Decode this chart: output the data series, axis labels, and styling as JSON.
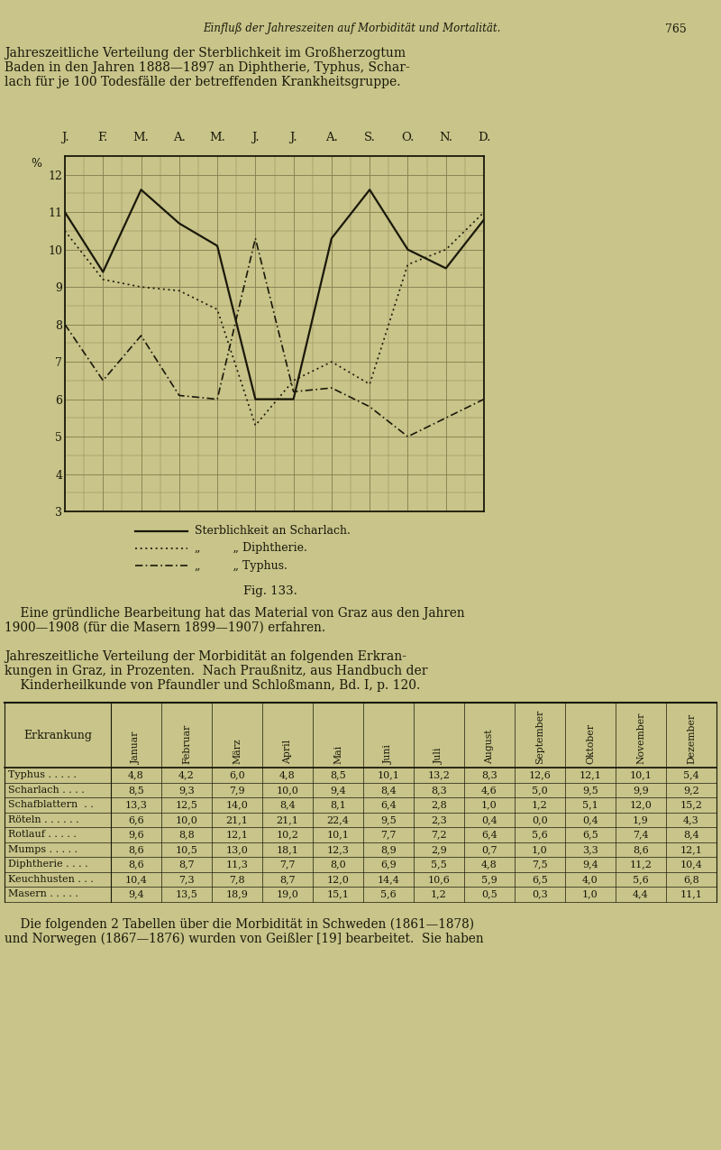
{
  "page_header": "Einfluß der Jahreszeiten auf Morbidität und Mortalität.",
  "page_number": "765",
  "chart_title_lines": [
    "Jahreszeitliche Verteilung der Sterblichkeit im Großherzogtum",
    "Baden in den Jahren 1888—1897 an Diphtherie, Typhus, Schar-",
    "lach für je 100 Todesfälle der betreffenden Krankheitsgruppe."
  ],
  "month_labels": [
    "J.",
    "F.",
    "M.",
    "A.",
    "M.",
    "J.",
    "J.",
    "A.",
    "S.",
    "O.",
    "N.",
    "D."
  ],
  "scharlach": [
    11.0,
    9.4,
    11.6,
    10.7,
    10.1,
    6.0,
    6.0,
    10.3,
    11.6,
    10.0,
    9.5,
    10.8
  ],
  "diphtherie": [
    10.5,
    9.2,
    9.0,
    8.9,
    8.4,
    5.3,
    6.5,
    7.0,
    6.4,
    9.6,
    10.0,
    11.0
  ],
  "typhus": [
    8.0,
    6.5,
    7.7,
    6.1,
    6.0,
    10.3,
    6.2,
    6.3,
    5.8,
    5.0,
    5.5,
    6.0
  ],
  "ylim_min": 3,
  "ylim_max": 12.5,
  "yticks": [
    3,
    4,
    5,
    6,
    7,
    8,
    9,
    10,
    11,
    12
  ],
  "legend_scharlach": "Sterblichkeit an Scharlach.",
  "legend_diphtherie": "„         „ Diphtherie.",
  "legend_typhus": "„         „ Typhus.",
  "fig_caption": "Fig. 133.",
  "text_para1_line1": "    Eine gründliche Bearbeitung hat das Material von Graz aus den Jahren",
  "text_para1_line2": "1900—1908 (für die Masern 1899—1907) erfahren.",
  "text_para2_line1": "Jahreszeitliche Verteilung der Morbidität an folgenden Erkran-",
  "text_para2_line2": "kungen in Graz, in Prozenten.  Nach Praußnitz, aus Handbuch der",
  "text_para2_line3": "    Kinderheilkunde von Pfaundler und Schloßmann, Bd. I, p. 120.",
  "table_cols": [
    "Erkrankung",
    "Januar",
    "Februar",
    "März",
    "April",
    "Mai",
    "Juni",
    "Juli",
    "August",
    "September",
    "Oktober",
    "November",
    "Dezember"
  ],
  "table_rows": [
    [
      "Typhus . . . . .",
      "4,8",
      "4,2",
      "6,0",
      "4,8",
      "8,5",
      "10,1",
      "13,2",
      "8,3",
      "12,6",
      "12,1",
      "10,1",
      "5,4"
    ],
    [
      "Scharlach . . . .",
      "8,5",
      "9,3",
      "7,9",
      "10,0",
      "9,4",
      "8,4",
      "8,3",
      "4,6",
      "5,0",
      "9,5",
      "9,9",
      "9,2"
    ],
    [
      "Schafblattern  . .",
      "13,3",
      "12,5",
      "14,0",
      "8,4",
      "8,1",
      "6,4",
      "2,8",
      "1,0",
      "1,2",
      "5,1",
      "12,0",
      "15,2"
    ],
    [
      "Röteln . . . . . .",
      "6,6",
      "10,0",
      "21,1",
      "21,1",
      "22,4",
      "9,5",
      "2,3",
      "0,4",
      "0,0",
      "0,4",
      "1,9",
      "4,3"
    ],
    [
      "Rotlauf . . . . .",
      "9,6",
      "8,8",
      "12,1",
      "10,2",
      "10,1",
      "7,7",
      "7,2",
      "6,4",
      "5,6",
      "6,5",
      "7,4",
      "8,4"
    ],
    [
      "Mumps . . . . .",
      "8,6",
      "10,5",
      "13,0",
      "18,1",
      "12,3",
      "8,9",
      "2,9",
      "0,7",
      "1,0",
      "3,3",
      "8,6",
      "12,1"
    ],
    [
      "Diphtherie . . . .",
      "8,6",
      "8,7",
      "11,3",
      "7,7",
      "8,0",
      "6,9",
      "5,5",
      "4,8",
      "7,5",
      "9,4",
      "11,2",
      "10,4"
    ],
    [
      "Keuchhusten . . .",
      "10,4",
      "7,3",
      "7,8",
      "8,7",
      "12,0",
      "14,4",
      "10,6",
      "5,9",
      "6,5",
      "4,0",
      "5,6",
      "6,8"
    ],
    [
      "Masern . . . . .",
      "9,4",
      "13,5",
      "18,9",
      "19,0",
      "15,1",
      "5,6",
      "1,2",
      "0,5",
      "0,3",
      "1,0",
      "4,4",
      "11,1"
    ]
  ],
  "text_para3_line1": "    Die folgenden 2 Tabellen über die Morbidität in Schweden (1861—1878)",
  "text_para3_line2": "und Norwegen (1867—1876) wurden von Geißler [19] bearbeitet.  Sie haben",
  "bg_color": "#c8c48a",
  "grid_color": "#8a8050",
  "line_color": "#1a180a"
}
